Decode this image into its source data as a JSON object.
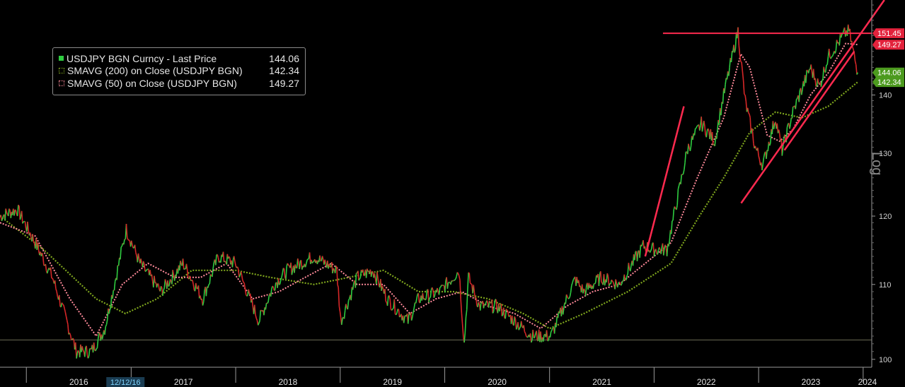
{
  "legend": {
    "items": [
      {
        "label": "USDJPY BGN Curncy - Last Price",
        "value": "144.06",
        "color": "#2ecc40"
      },
      {
        "label": "SMAVG (200)  on Close (USDJPY BGN)",
        "value": "142.34",
        "color": "#7fa61d"
      },
      {
        "label": "SMAVG (50)  on Close (USDJPY BGN)",
        "value": "149.27",
        "color": "#ff8a9a"
      }
    ]
  },
  "scale_label": "Log",
  "cursor_date": "12/12/16",
  "colors": {
    "price": "#2ecc40",
    "price_dark": "#d62728",
    "sma200": "#7fa61d",
    "sma50": "#ff8a9a",
    "trendline": "#ff2a4f",
    "tag_red": "#e3223c",
    "tag_green": "#4c9a1e",
    "axis": "#9a9a9a"
  },
  "chart_data": {
    "type": "line",
    "y_scale": "log",
    "ylim": [
      99,
      158
    ],
    "y_ticks": [
      100,
      110,
      120,
      130,
      140
    ],
    "x_ticks": [
      "2016",
      "2017",
      "2018",
      "2019",
      "2020",
      "2021",
      "2022",
      "2023",
      "2024"
    ],
    "series": [
      {
        "name": "USDJPY BGN Curncy - Last Price",
        "x": [
          "2015-10-01",
          "2015-12-01",
          "2016-02-01",
          "2016-04-01",
          "2016-06-24",
          "2016-08-15",
          "2016-10-01",
          "2016-12-15",
          "2017-02-01",
          "2017-04-15",
          "2017-07-01",
          "2017-09-08",
          "2017-11-01",
          "2018-01-01",
          "2018-03-23",
          "2018-05-15",
          "2018-07-01",
          "2018-10-01",
          "2018-12-20",
          "2019-01-03",
          "2019-03-01",
          "2019-04-25",
          "2019-06-15",
          "2019-08-26",
          "2019-10-01",
          "2019-12-15",
          "2020-02-20",
          "2020-03-09",
          "2020-03-24",
          "2020-05-01",
          "2020-07-01",
          "2020-09-01",
          "2020-11-01",
          "2021-01-06",
          "2021-03-31",
          "2021-05-01",
          "2021-07-01",
          "2021-09-01",
          "2021-11-24",
          "2022-01-01",
          "2022-02-15",
          "2022-04-28",
          "2022-06-15",
          "2022-08-01",
          "2022-09-01",
          "2022-10-21",
          "2022-11-15",
          "2022-12-20",
          "2023-01-16",
          "2023-03-01",
          "2023-03-24",
          "2023-05-01",
          "2023-06-30",
          "2023-08-01",
          "2023-09-01",
          "2023-10-31",
          "2023-11-13",
          "2023-12-01",
          "2023-12-13"
        ],
        "y": [
          120,
          121,
          116,
          111,
          101,
          101,
          104,
          118,
          113,
          109,
          113,
          108,
          114,
          113,
          105,
          110,
          112,
          114,
          112,
          105,
          111,
          112,
          108,
          105,
          108,
          109,
          112,
          102,
          111,
          107,
          107,
          105,
          103,
          103,
          110.7,
          109,
          111,
          110,
          115.5,
          115,
          115,
          130.7,
          135,
          132,
          140,
          151.9,
          139,
          131,
          128,
          136,
          130.5,
          137,
          145,
          141.5,
          147,
          151.5,
          151.9,
          147,
          144.06
        ]
      },
      {
        "name": "SMAVG (200)  on Close (USDJPY BGN)",
        "x": [
          "2015-10-01",
          "2016-03-01",
          "2016-09-01",
          "2016-12-12",
          "2017-04-01",
          "2017-08-01",
          "2018-01-01",
          "2018-05-01",
          "2018-10-01",
          "2019-02-01",
          "2019-06-01",
          "2019-10-01",
          "2020-02-01",
          "2020-06-01",
          "2020-10-01",
          "2021-01-01",
          "2021-05-01",
          "2021-10-01",
          "2022-03-01",
          "2022-06-01",
          "2022-09-01",
          "2022-12-01",
          "2023-03-01",
          "2023-06-01",
          "2023-09-01",
          "2023-12-13"
        ],
        "y": [
          120,
          115,
          108,
          106,
          108,
          112,
          112,
          111,
          110,
          111,
          112,
          109,
          109,
          108,
          106,
          104,
          106,
          109,
          113,
          119.5,
          126,
          133.5,
          137,
          136,
          138,
          142.34
        ]
      },
      {
        "name": "SMAVG (50)  on Close (USDJPY BGN)",
        "x": [
          "2015-10-01",
          "2016-02-01",
          "2016-06-01",
          "2016-09-01",
          "2016-12-01",
          "2017-03-01",
          "2017-06-01",
          "2017-09-01",
          "2017-12-01",
          "2018-03-01",
          "2018-06-01",
          "2018-09-01",
          "2018-12-01",
          "2019-03-01",
          "2019-06-01",
          "2019-09-01",
          "2019-12-01",
          "2020-03-01",
          "2020-06-01",
          "2020-09-01",
          "2020-12-01",
          "2021-03-01",
          "2021-06-01",
          "2021-09-01",
          "2021-12-01",
          "2022-03-01",
          "2022-06-01",
          "2022-09-01",
          "2022-10-31",
          "2022-12-01",
          "2023-01-31",
          "2023-03-15",
          "2023-05-01",
          "2023-07-01",
          "2023-09-01",
          "2023-11-01",
          "2023-12-13"
        ],
        "y": [
          119,
          117,
          108,
          103,
          110,
          113,
          111,
          111,
          113,
          108,
          109,
          111,
          113,
          110,
          110,
          106,
          108,
          109,
          107,
          106,
          104,
          107,
          109,
          110,
          113,
          116,
          126,
          136,
          147.5,
          145,
          133,
          132,
          134,
          140,
          144,
          149.5,
          149.27
        ]
      }
    ],
    "annotations": {
      "horizontal_line": 151.45,
      "base_line": 102.5,
      "trendlines": [
        {
          "from": [
            "2021-12-01",
            114
          ],
          "to": [
            "2022-04-15",
            138
          ]
        },
        {
          "from": [
            "2022-11-01",
            122
          ],
          "to": [
            "2024-03-15",
            158
          ]
        },
        {
          "from": [
            "2023-04-01",
            130.5
          ],
          "to": [
            "2023-12-01",
            148
          ]
        }
      ]
    },
    "price_tags": [
      {
        "value": 151.45,
        "label": "151.45",
        "color": "red"
      },
      {
        "value": 149.27,
        "label": "149.27",
        "color": "red"
      },
      {
        "value": 144.06,
        "label": "144.06",
        "color": "green"
      },
      {
        "value": 142.34,
        "label": "142.34",
        "color": "green"
      }
    ]
  }
}
